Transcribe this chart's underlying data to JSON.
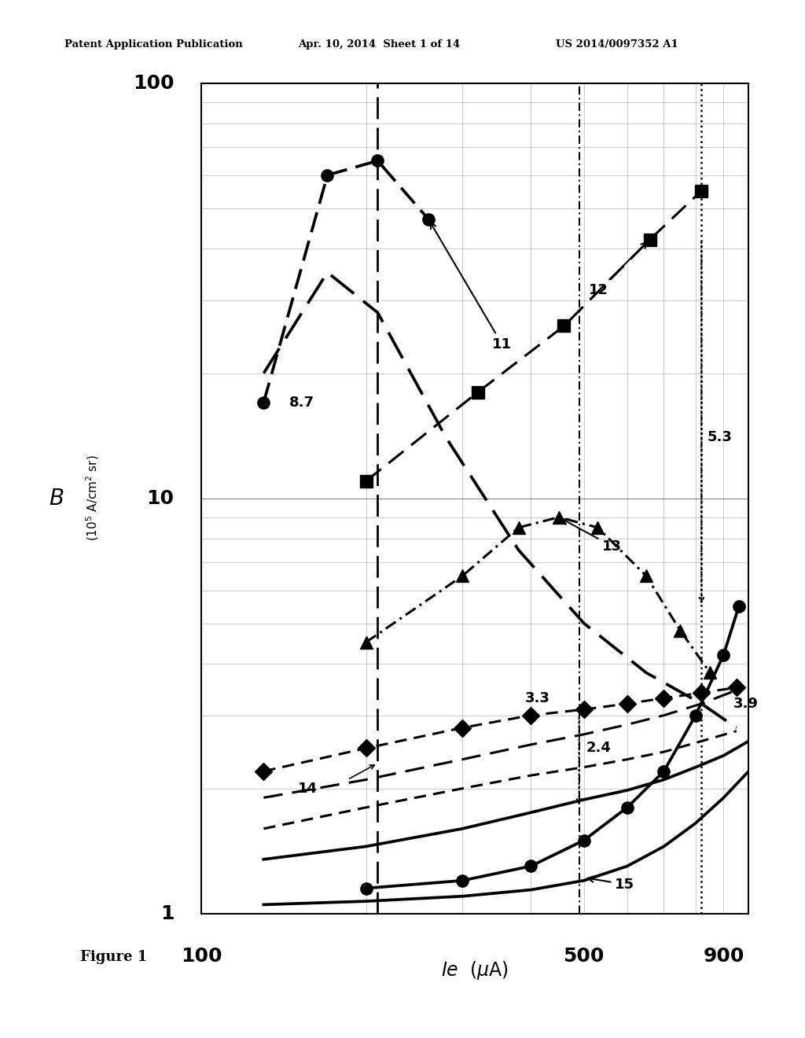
{
  "header_left": "Patent Application Publication",
  "header_mid": "Apr. 10, 2014  Sheet 1 of 14",
  "header_right": "US 2014/0097352 A1",
  "figure_label": "Figure 1",
  "xlim": [
    100,
    1000
  ],
  "ylim": [
    1,
    100
  ],
  "background_color": "#ffffff",
  "series11_x": [
    130,
    170,
    210,
    260
  ],
  "series11_y": [
    17,
    60,
    65,
    47
  ],
  "series12_x": [
    200,
    320,
    460,
    660,
    820
  ],
  "series12_y": [
    11,
    18,
    26,
    42,
    55
  ],
  "series13_x": [
    200,
    300,
    380,
    450,
    530,
    650,
    750,
    850
  ],
  "series13_y": [
    4.5,
    6.5,
    8.5,
    9.0,
    8.5,
    6.5,
    4.8,
    3.8
  ],
  "series14_x": [
    130,
    200,
    300,
    400,
    500,
    600,
    700,
    820,
    950
  ],
  "series14_y": [
    2.2,
    2.5,
    2.8,
    3.0,
    3.1,
    3.2,
    3.3,
    3.4,
    3.5
  ],
  "series15a_x": [
    130,
    200,
    300,
    400,
    500,
    600,
    700,
    820,
    950
  ],
  "series15a_y": [
    1.6,
    1.8,
    2.0,
    2.15,
    2.25,
    2.35,
    2.45,
    2.6,
    2.75
  ],
  "series_circ_right_x": [
    200,
    300,
    400,
    500,
    600,
    700,
    800,
    900,
    960
  ],
  "series_circ_right_y": [
    1.15,
    1.2,
    1.3,
    1.5,
    1.8,
    2.2,
    3.0,
    4.2,
    5.5
  ],
  "series_solid1_x": [
    130,
    200,
    300,
    400,
    500,
    600,
    700,
    800,
    900,
    1000
  ],
  "series_solid1_y": [
    1.35,
    1.45,
    1.6,
    1.75,
    1.88,
    1.98,
    2.1,
    2.25,
    2.4,
    2.6
  ],
  "series_solid2_x": [
    130,
    200,
    300,
    400,
    500,
    600,
    700,
    800,
    900,
    1000
  ],
  "series_solid2_y": [
    1.05,
    1.07,
    1.1,
    1.14,
    1.2,
    1.3,
    1.45,
    1.65,
    1.9,
    2.2
  ],
  "series_dashed_fall_x": [
    130,
    170,
    210,
    280,
    380,
    500,
    650,
    820,
    950
  ],
  "series_dashed_fall_y": [
    20,
    35,
    28,
    14,
    7.5,
    5.0,
    3.8,
    3.2,
    2.8
  ],
  "series_dash2_x": [
    130,
    200,
    300,
    400,
    500,
    600,
    700,
    820,
    950
  ],
  "series_dash2_y": [
    1.9,
    2.1,
    2.35,
    2.55,
    2.7,
    2.85,
    3.0,
    3.2,
    3.45
  ],
  "vline1_x": 210,
  "vline2_x": 490,
  "vline3_x": 820
}
